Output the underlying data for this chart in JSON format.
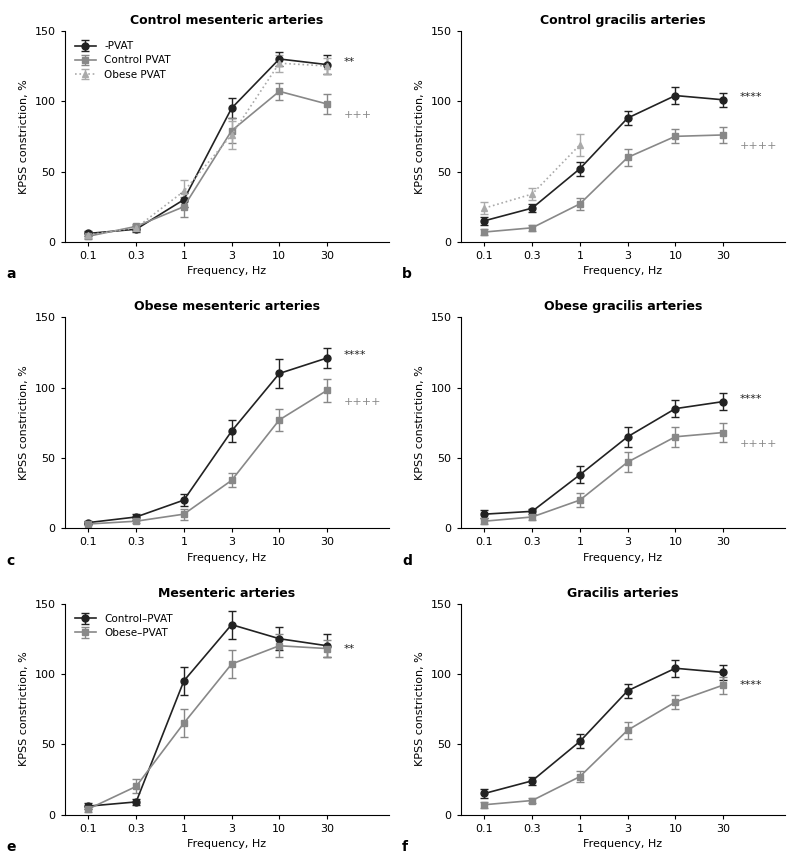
{
  "freqs": [
    0.1,
    0.3,
    1,
    3,
    10,
    30
  ],
  "panels": [
    {
      "title": "Control mesenteric arteries",
      "label": "a",
      "series": [
        {
          "label": "-PVAT",
          "color": "#222222",
          "linestyle": "solid",
          "marker": "o",
          "y": [
            6,
            9,
            30,
            95,
            130,
            126
          ],
          "yerr": [
            2,
            2,
            5,
            7,
            5,
            7
          ]
        },
        {
          "label": "Control PVAT",
          "color": "#888888",
          "linestyle": "solid",
          "marker": "s",
          "y": [
            4,
            11,
            25,
            79,
            107,
            98
          ],
          "yerr": [
            2,
            2,
            7,
            9,
            6,
            7
          ]
        },
        {
          "label": "Obese PVAT",
          "color": "#aaaaaa",
          "linestyle": "dotted",
          "marker": "^",
          "y": [
            5,
            10,
            36,
            76,
            127,
            125
          ],
          "yerr": [
            2,
            2,
            8,
            10,
            6,
            6
          ]
        }
      ],
      "sig_text": [
        "**",
        "+++"
      ],
      "sig_colors": [
        "#222222",
        "#888888"
      ],
      "ylim": [
        0,
        150
      ],
      "yticks": [
        0,
        50,
        100,
        150
      ],
      "show_legend": true
    },
    {
      "title": "Control gracilis arteries",
      "label": "b",
      "series": [
        {
          "label": "-PVAT",
          "color": "#222222",
          "linestyle": "solid",
          "marker": "o",
          "y": [
            15,
            24,
            52,
            88,
            104,
            101
          ],
          "yerr": [
            3,
            3,
            5,
            5,
            6,
            5
          ]
        },
        {
          "label": "Control PVAT",
          "color": "#888888",
          "linestyle": "solid",
          "marker": "s",
          "y": [
            7,
            10,
            27,
            60,
            75,
            76
          ],
          "yerr": [
            2,
            2,
            4,
            6,
            5,
            6
          ]
        },
        {
          "label": "Obese PVAT",
          "color": "#aaaaaa",
          "linestyle": "dotted",
          "marker": "^",
          "y": [
            24,
            34,
            69,
            null,
            null,
            null
          ],
          "yerr": [
            4,
            4,
            8,
            null,
            null,
            null
          ]
        }
      ],
      "sig_text": [
        "****",
        "++++"
      ],
      "sig_colors": [
        "#222222",
        "#888888"
      ],
      "ylim": [
        0,
        150
      ],
      "yticks": [
        0,
        50,
        100,
        150
      ],
      "show_legend": false
    },
    {
      "title": "Obese mesenteric arteries",
      "label": "c",
      "series": [
        {
          "label": "-PVAT",
          "color": "#222222",
          "linestyle": "solid",
          "marker": "o",
          "y": [
            4,
            8,
            20,
            69,
            110,
            121
          ],
          "yerr": [
            1,
            2,
            4,
            8,
            10,
            7
          ]
        },
        {
          "label": "Obese PVAT",
          "color": "#888888",
          "linestyle": "solid",
          "marker": "s",
          "y": [
            3,
            5,
            10,
            34,
            77,
            98
          ],
          "yerr": [
            1,
            1,
            4,
            5,
            8,
            8
          ]
        }
      ],
      "sig_text": [
        "****",
        "++++"
      ],
      "sig_colors": [
        "#222222",
        "#888888"
      ],
      "ylim": [
        0,
        150
      ],
      "yticks": [
        0,
        50,
        100,
        150
      ],
      "show_legend": false
    },
    {
      "title": "Obese gracilis arteries",
      "label": "d",
      "series": [
        {
          "label": "-PVAT",
          "color": "#222222",
          "linestyle": "solid",
          "marker": "o",
          "y": [
            10,
            12,
            38,
            65,
            85,
            90
          ],
          "yerr": [
            3,
            2,
            6,
            7,
            6,
            6
          ]
        },
        {
          "label": "Obese PVAT",
          "color": "#888888",
          "linestyle": "solid",
          "marker": "s",
          "y": [
            5,
            8,
            20,
            47,
            65,
            68
          ],
          "yerr": [
            2,
            2,
            5,
            7,
            7,
            7
          ]
        }
      ],
      "sig_text": [
        "****",
        "++++"
      ],
      "sig_colors": [
        "#222222",
        "#888888"
      ],
      "ylim": [
        0,
        150
      ],
      "yticks": [
        0,
        50,
        100,
        150
      ],
      "show_legend": false
    },
    {
      "title": "Mesenteric arteries",
      "label": "e",
      "series": [
        {
          "label": "Control–PVAT",
          "color": "#222222",
          "linestyle": "solid",
          "marker": "o",
          "y": [
            6,
            9,
            95,
            135,
            125,
            120
          ],
          "yerr": [
            2,
            2,
            10,
            10,
            8,
            8
          ]
        },
        {
          "label": "Obese–PVAT",
          "color": "#888888",
          "linestyle": "solid",
          "marker": "s",
          "y": [
            4,
            20,
            65,
            107,
            120,
            118
          ],
          "yerr": [
            2,
            5,
            10,
            10,
            8,
            6
          ]
        }
      ],
      "sig_text": [
        "**"
      ],
      "sig_colors": [
        "#222222"
      ],
      "ylim": [
        0,
        150
      ],
      "yticks": [
        0,
        50,
        100,
        150
      ],
      "show_legend": true
    },
    {
      "title": "Gracilis arteries",
      "label": "f",
      "series": [
        {
          "label": "Control–PVAT",
          "color": "#222222",
          "linestyle": "solid",
          "marker": "o",
          "y": [
            15,
            24,
            52,
            88,
            104,
            101
          ],
          "yerr": [
            3,
            3,
            5,
            5,
            6,
            5
          ]
        },
        {
          "label": "Obese–PVAT",
          "color": "#888888",
          "linestyle": "solid",
          "marker": "s",
          "y": [
            7,
            10,
            27,
            60,
            80,
            92
          ],
          "yerr": [
            2,
            2,
            4,
            6,
            5,
            6
          ]
        }
      ],
      "sig_text": [
        "****"
      ],
      "sig_colors": [
        "#222222"
      ],
      "ylim": [
        0,
        150
      ],
      "yticks": [
        0,
        50,
        100,
        150
      ],
      "show_legend": false
    }
  ],
  "xlabel": "Frequency, Hz",
  "ylabel": "KPSS constriction, %",
  "background": "#ffffff",
  "border_color": "#000000"
}
